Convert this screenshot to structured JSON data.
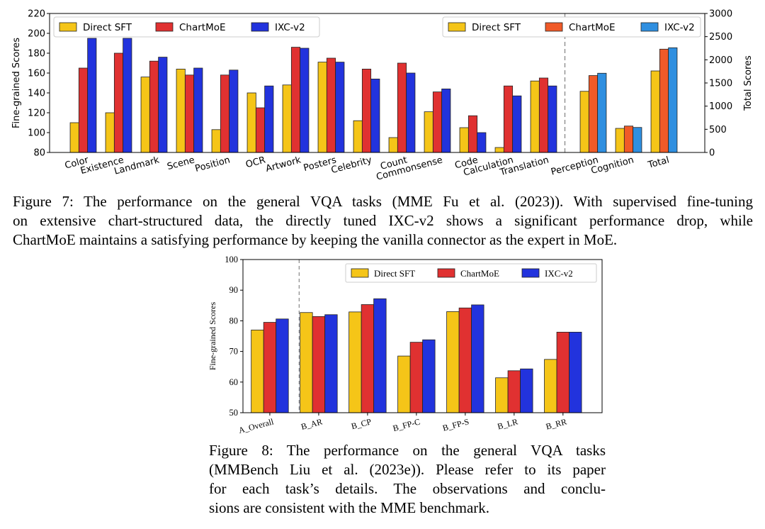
{
  "chart_data": [
    {
      "type": "bar",
      "caption": "Figure 7: The performance on the general VQA tasks (MME Fu et al. (2023)). With supervised fine-tuning on extensive chart-structured data, the directly tuned IXC-v2 shows a significant performance drop, while ChartMoE maintains a satisfying performance by keeping the vanilla connector as the expert in MoE.",
      "caption_lines": [
        "Figure 7: The performance on the general VQA tasks (MME Fu et al. (2023)). With supervised fine-tuning",
        "on extensive chart-structured data, the directly tuned IXC-v2 shows a significant performance drop, while",
        "ChartMoE maintains a satisfying performance by keeping the vanilla connector as the expert in MoE."
      ],
      "ylabel_left": "Fine-grained Scores",
      "ylabel_right": "Total Scores",
      "ylim_left": [
        80,
        220
      ],
      "ylim_right": [
        0,
        3000
      ],
      "yticks_left": [
        80,
        100,
        120,
        140,
        160,
        180,
        200,
        220
      ],
      "yticks_right": [
        0,
        500,
        1000,
        1500,
        2000,
        2500,
        3000
      ],
      "legend_left": {
        "position": "top-left",
        "entries": [
          "Direct SFT",
          "ChartMoE",
          "IXC-v2"
        ]
      },
      "legend_right": {
        "position": "top-right",
        "entries": [
          "Direct SFT",
          "ChartMoE",
          "IXC-v2"
        ]
      },
      "fine_grained": {
        "categories": [
          "Color",
          "Existence",
          "Landmark",
          "Scene",
          "Position",
          "OCR",
          "Artwork",
          "Posters",
          "Celebrity",
          "Count",
          "Commonsense",
          "Code",
          "Calculation",
          "Translation"
        ],
        "series": [
          {
            "name": "Direct SFT",
            "color": "#f5c518",
            "values": [
              110,
              120,
              156,
              164,
              103,
              140,
              148,
              171,
              112,
              95,
              121,
              105,
              85,
              152
            ]
          },
          {
            "name": "ChartMoE",
            "color": "#e03131",
            "values": [
              165,
              180,
              172,
              158,
              158,
              125,
              186,
              175,
              164,
              170,
              141,
              117,
              147,
              155
            ]
          },
          {
            "name": "IXC-v2",
            "color": "#2233dd",
            "values": [
              195,
              195,
              176,
              165,
              163,
              147,
              185,
              171,
              154,
              160,
              144,
              100,
              137,
              147
            ]
          }
        ]
      },
      "total": {
        "categories": [
          "Perception",
          "Cognition",
          "Total"
        ],
        "series": [
          {
            "name": "Direct SFT",
            "color": "#f5c518",
            "values": [
              1320,
              520,
              1760
            ]
          },
          {
            "name": "ChartMoE",
            "color": "#f05a28",
            "values": [
              1660,
              570,
              2230
            ]
          },
          {
            "name": "IXC-v2",
            "color": "#2f8fe0",
            "values": [
              1710,
              540,
              2260
            ]
          }
        ]
      }
    },
    {
      "type": "bar",
      "caption": "Figure 8: The performance on the general VQA tasks (MMBench Liu et al. (2023e)). Please refer to its paper for each task's details. The observations and conclusions are consistent with the MME benchmark.",
      "caption_lines": [
        "Figure 8: The performance on the general VQA tasks",
        "(MMBench Liu et al. (2023e)). Please refer to its paper",
        "for each task’s details. The observations and conclu-",
        "sions are consistent with the MME benchmark."
      ],
      "ylabel": "Fine-grained Scores",
      "ylim": [
        50,
        100
      ],
      "yticks": [
        50,
        60,
        70,
        80,
        90,
        100
      ],
      "legend": {
        "position": "top-right",
        "entries": [
          "Direct SFT",
          "ChartMoE",
          "IXC-v2"
        ]
      },
      "categories": [
        "A_Overall",
        "B_AR",
        "B_CP",
        "B_FP-C",
        "B_FP-S",
        "B_LR",
        "B_RR"
      ],
      "series": [
        {
          "name": "Direct SFT",
          "color": "#f5c518",
          "values": [
            77.0,
            82.7,
            82.9,
            68.5,
            83.0,
            61.4,
            67.4
          ]
        },
        {
          "name": "ChartMoE",
          "color": "#e03131",
          "values": [
            79.5,
            81.4,
            85.3,
            73.0,
            84.2,
            63.7,
            76.3
          ]
        },
        {
          "name": "IXC-v2",
          "color": "#2233dd",
          "values": [
            80.6,
            82.0,
            87.2,
            73.8,
            85.2,
            64.3,
            76.3
          ]
        }
      ]
    }
  ]
}
